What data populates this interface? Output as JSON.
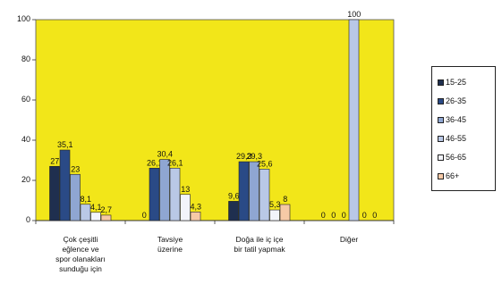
{
  "chart_data": {
    "type": "bar",
    "categories": [
      "Çok çeşitli eğlence ve spor olanakları sunduğu için",
      "Tavsiye üzerine",
      "Doğa ile iç içe bir tatil yapmak",
      "Diğer"
    ],
    "category_lines": [
      [
        "Çok çeşitli",
        "eğlence ve",
        "spor olanakları",
        "sunduğu için"
      ],
      [
        "Tavsiye",
        "üzerine"
      ],
      [
        "Doğa ile iç içe",
        "bir tatil yapmak"
      ],
      [
        "Diğer"
      ]
    ],
    "series": [
      {
        "name": "15-25",
        "color": "#1f2f4f",
        "values": [
          27,
          0,
          9.6,
          0
        ],
        "labels": [
          "27",
          "0",
          "9,6",
          "0"
        ]
      },
      {
        "name": "26-35",
        "color": "#2a4a86",
        "values": [
          35.1,
          26.1,
          29.3,
          0
        ],
        "labels": [
          "35,1",
          "26,1",
          "29,3",
          "0"
        ]
      },
      {
        "name": "36-45",
        "color": "#8fa6d2",
        "values": [
          23,
          30.4,
          29.3,
          0
        ],
        "labels": [
          "23",
          "30,4",
          "29,3",
          "0"
        ]
      },
      {
        "name": "46-55",
        "color": "#b9c8e6",
        "values": [
          8.1,
          26.1,
          25.6,
          100
        ],
        "labels": [
          "8,1",
          "26,1",
          "25,6",
          "100"
        ]
      },
      {
        "name": "56-65",
        "color": "#f2f4fa",
        "values": [
          4.1,
          13,
          5.3,
          0
        ],
        "labels": [
          "4,1",
          "13",
          "5,3",
          "0"
        ]
      },
      {
        "name": "66+",
        "color": "#f6c9a6",
        "values": [
          2.7,
          4.3,
          8,
          0
        ],
        "labels": [
          "2,7",
          "4,3",
          "8",
          "0"
        ]
      }
    ],
    "ylim": [
      0,
      100
    ],
    "yticks": [
      0,
      20,
      40,
      60,
      80,
      100
    ],
    "plot_background": "#f2e619",
    "legend_position": "right",
    "grid": false
  }
}
